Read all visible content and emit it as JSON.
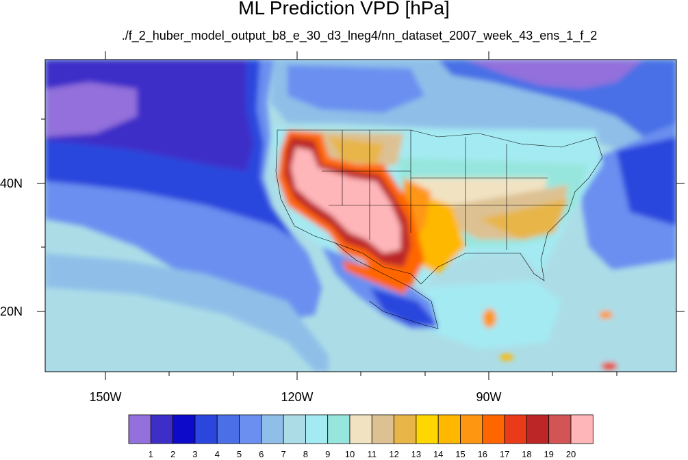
{
  "title": "ML Prediction VPD [hPa]",
  "subtitle": "./f_2_huber_model_output_b8_e_30_d3_lneg4/nn_dataset_2007_week_43_ens_1_f_2",
  "map": {
    "lon_labels": [
      "150W",
      "120W",
      "90W"
    ],
    "lat_labels": [
      "40N",
      "20N"
    ]
  },
  "colorbar": {
    "labels": [
      "1",
      "2",
      "3",
      "4",
      "5",
      "6",
      "7",
      "8",
      "9",
      "10",
      "11",
      "12",
      "13",
      "14",
      "15",
      "16",
      "17",
      "18",
      "19",
      "20"
    ],
    "colors": [
      "#9370db",
      "#3e2ec8",
      "#0d0bc9",
      "#2b46dd",
      "#4a6fe6",
      "#6b8ff0",
      "#8fbfe8",
      "#acdde7",
      "#a4eaf2",
      "#97e6dd",
      "#f1e2c2",
      "#ddc193",
      "#e8b549",
      "#ffd700",
      "#ffb800",
      "#ff9612",
      "#ff6600",
      "#e93a1a",
      "#bc2626",
      "#d25454",
      "#ffb6b9"
    ]
  }
}
